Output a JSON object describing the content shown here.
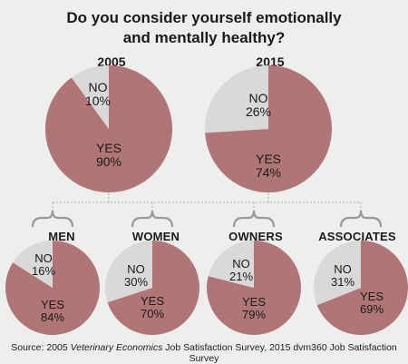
{
  "title_line1": "Do you consider yourself emotionally",
  "title_line2": "and mentally healthy?",
  "source_prefix": "Source: 2005 ",
  "source_italic": "Veterinary Economics",
  "source_suffix": " Job Satisfaction Survey, 2015 dvm360 Job Satisfaction Survey",
  "colors": {
    "yes": "#b07677",
    "no": "#d9d9d9",
    "bracket": "#999999",
    "background": "#eeeeec"
  },
  "chart_data": [
    {
      "type": "pie",
      "title": "2005",
      "categories": [
        "YES",
        "NO"
      ],
      "values": [
        90,
        10
      ],
      "labels": [
        "YES 90%",
        "NO 10%"
      ]
    },
    {
      "type": "pie",
      "title": "2015",
      "categories": [
        "YES",
        "NO"
      ],
      "values": [
        74,
        26
      ],
      "labels": [
        "YES 74%",
        "NO 26%"
      ]
    },
    {
      "type": "pie",
      "title": "MEN",
      "categories": [
        "YES",
        "NO"
      ],
      "values": [
        84,
        16
      ],
      "labels": [
        "YES 84%",
        "NO 16%"
      ]
    },
    {
      "type": "pie",
      "title": "WOMEN",
      "categories": [
        "YES",
        "NO"
      ],
      "values": [
        70,
        30
      ],
      "labels": [
        "YES 70%",
        "NO 30%"
      ]
    },
    {
      "type": "pie",
      "title": "OWNERS",
      "categories": [
        "YES",
        "NO"
      ],
      "values": [
        79,
        21
      ],
      "labels": [
        "YES 79%",
        "NO 21%"
      ]
    },
    {
      "type": "pie",
      "title": "ASSOCIATES",
      "categories": [
        "YES",
        "NO"
      ],
      "values": [
        69,
        31
      ],
      "labels": [
        "YES 69%",
        "NO 31%"
      ]
    }
  ]
}
